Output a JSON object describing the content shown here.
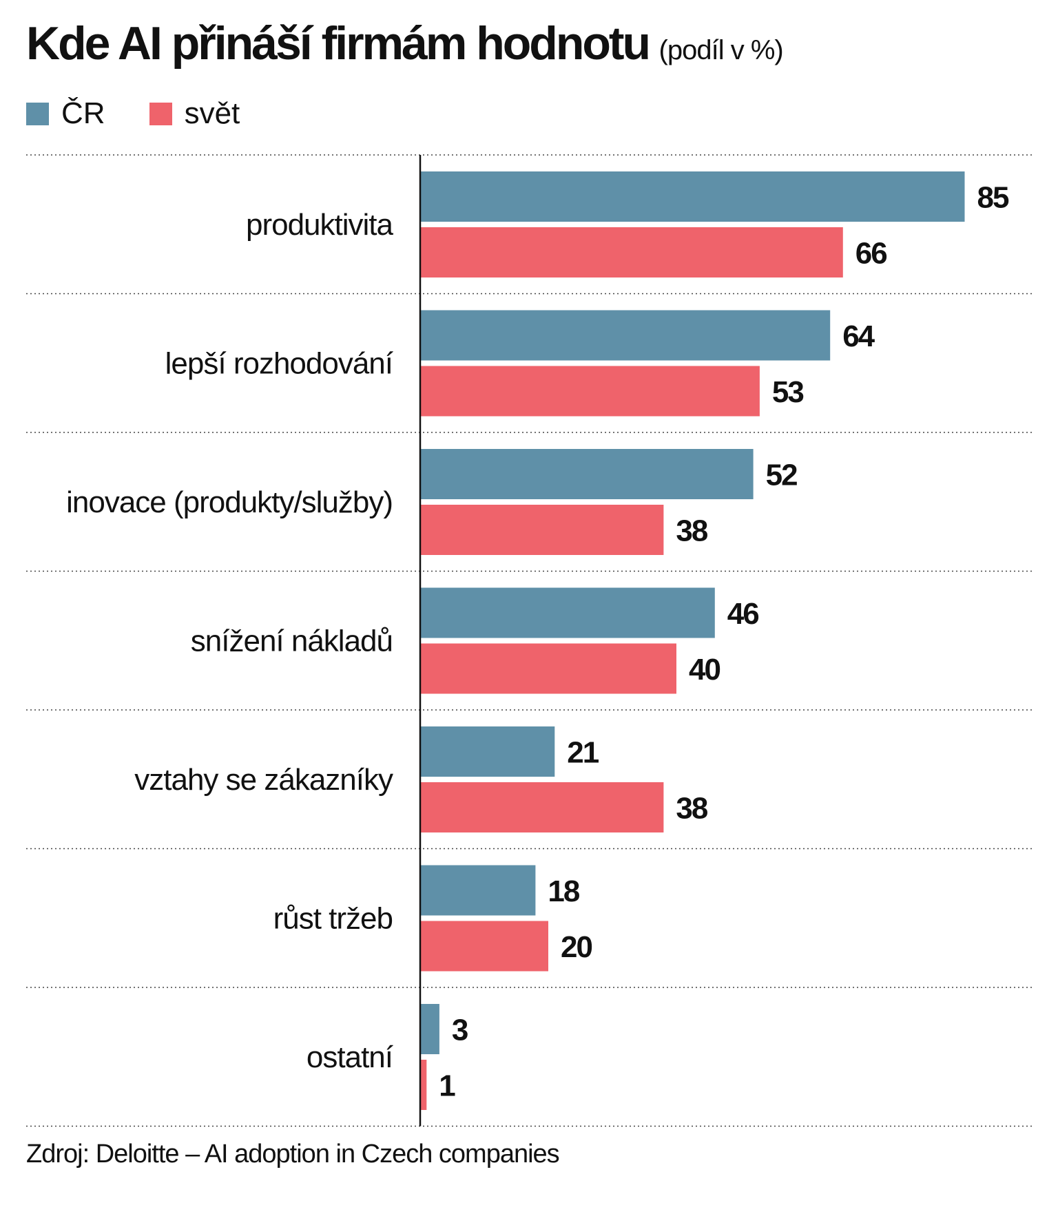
{
  "chart_data": {
    "type": "bar",
    "orientation": "horizontal",
    "title": "Kde AI přináší firmám hodnotu",
    "subtitle": "(podíl v %)",
    "categories": [
      "produktivita",
      "lepší rozhodování",
      "inovace (produkty/služby)",
      "snížení nákladů",
      "vztahy se zákazníky",
      "růst tržeb",
      "ostatní"
    ],
    "series": [
      {
        "name": "ČR",
        "color": "#5f90a8",
        "values": [
          85,
          64,
          52,
          46,
          21,
          18,
          3
        ]
      },
      {
        "name": "svět",
        "color": "#ef636b",
        "values": [
          66,
          53,
          38,
          40,
          38,
          20,
          1
        ]
      }
    ],
    "xlim": [
      0,
      100
    ],
    "grid": false,
    "legend_position": "top-left",
    "data_labels": true
  },
  "source": "Zdroj: Deloitte – AI adoption in Czech companies"
}
